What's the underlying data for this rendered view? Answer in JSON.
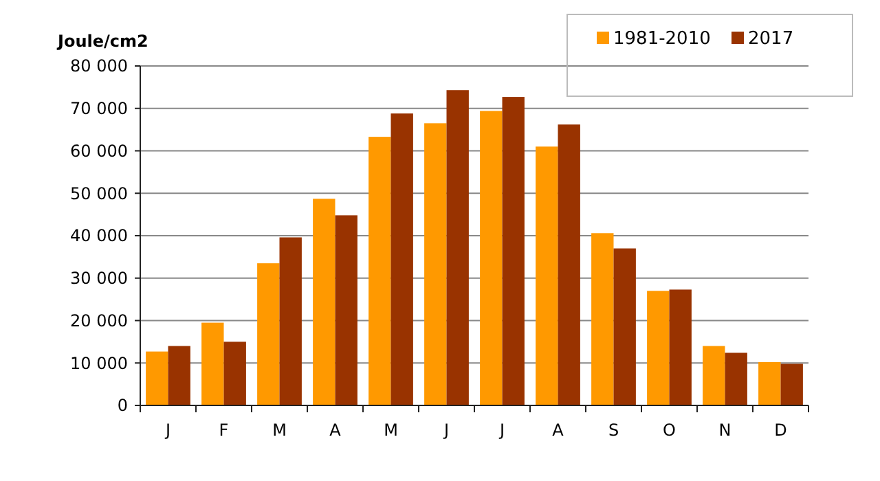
{
  "chart_data": {
    "type": "bar",
    "ylabel": "Joule/cm2",
    "categories": [
      "J",
      "F",
      "M",
      "A",
      "M",
      "J",
      "J",
      "A",
      "S",
      "O",
      "N",
      "D"
    ],
    "series": [
      {
        "name": "1981-2010",
        "color": "#ff9900",
        "values": [
          12700,
          19500,
          33500,
          48700,
          63300,
          66500,
          69400,
          61000,
          40600,
          27000,
          14000,
          10200
        ]
      },
      {
        "name": "2017",
        "color": "#993300",
        "values": [
          14000,
          15000,
          39600,
          44800,
          68800,
          74300,
          72700,
          66200,
          37000,
          27300,
          12400,
          9800
        ]
      }
    ],
    "ylim": [
      0,
      80000
    ],
    "yticks": [
      {
        "value": 0,
        "label": "0"
      },
      {
        "value": 10000,
        "label": "10 000"
      },
      {
        "value": 20000,
        "label": "20 000"
      },
      {
        "value": 30000,
        "label": "30 000"
      },
      {
        "value": 40000,
        "label": "40 000"
      },
      {
        "value": 50000,
        "label": "50 000"
      },
      {
        "value": 60000,
        "label": "60 000"
      },
      {
        "value": 70000,
        "label": "70 000"
      },
      {
        "value": 80000,
        "label": "80 000"
      }
    ],
    "grid": "y",
    "legend": "top right"
  }
}
